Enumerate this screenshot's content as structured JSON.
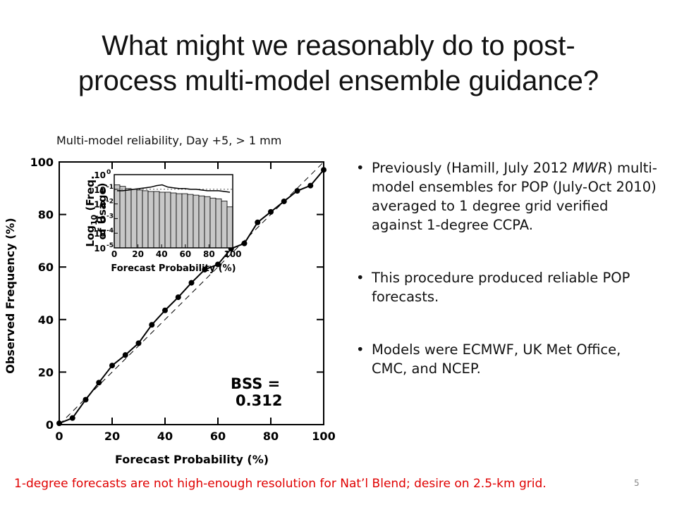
{
  "slide": {
    "title_line1": "What might we reasonably do to post-",
    "title_line2": "process multi-model ensemble guidance?",
    "chart_caption": "Multi-model reliability, Day +5, > 1 mm",
    "bullets": [
      {
        "pre": "Previously (Hamill, July 2012 ",
        "em": "MWR",
        "post": ") multi-model ensembles for POP (July-Oct 2010) averaged to 1 degree grid verified against 1-degree CCPA."
      },
      {
        "pre": "This procedure produced reliable POP forecasts.",
        "em": "",
        "post": ""
      },
      {
        "pre": "Models were ECMWF, UK Met Office, CMC, and NCEP.",
        "em": "",
        "post": ""
      }
    ],
    "footer_note": "1-degree forecasts are not high-enough resolution for Nat’l Blend; desire on 2.5-km grid.",
    "page_number": "5"
  },
  "chart_data": [
    {
      "type": "line",
      "xlabel": "Forecast Probability (%)",
      "ylabel": "Observed Frequency (%)",
      "xlim": [
        0,
        100
      ],
      "ylim": [
        0,
        100
      ],
      "xticks": [
        "0",
        "20",
        "40",
        "60",
        "80",
        "100"
      ],
      "yticks": [
        "0",
        "20",
        "40",
        "60",
        "80",
        "100"
      ],
      "annotation_line1": "BSS =",
      "annotation_line2": "0.312",
      "x": [
        0,
        5,
        10,
        15,
        20,
        25,
        30,
        35,
        40,
        45,
        50,
        55,
        60,
        65,
        70,
        75,
        80,
        85,
        90,
        95,
        100
      ],
      "y": [
        0.5,
        2.5,
        9.5,
        16,
        22.5,
        26.5,
        31,
        38,
        43.5,
        48.5,
        54,
        59,
        61,
        67,
        69,
        77,
        81,
        85,
        89,
        91,
        97
      ]
    },
    {
      "type": "bar",
      "xlabel": "Forecast Probability (%)",
      "ylabel_line1": "Log",
      "ylabel_sub": "10",
      "ylabel_rest": " (Freq.",
      "ylabel_line2": "of Usage)",
      "xticks": [
        "0",
        "20",
        "40",
        "60",
        "80",
        "100"
      ],
      "yticks": [
        "10",
        "10",
        "10",
        "10",
        "10",
        "10"
      ],
      "ytick_exponents": [
        "0",
        "-1",
        "-2",
        "-3",
        "-4",
        "-5"
      ],
      "ylim": [
        -5,
        0
      ],
      "log_scale": true,
      "x": [
        0,
        5,
        10,
        15,
        20,
        25,
        30,
        35,
        40,
        45,
        50,
        55,
        60,
        65,
        70,
        75,
        80,
        85,
        90,
        95,
        100
      ],
      "log_freq": [
        -0.7,
        -0.8,
        -0.95,
        -1.0,
        -1.05,
        -1.1,
        -1.15,
        -1.15,
        -1.2,
        -1.2,
        -1.25,
        -1.3,
        -1.3,
        -1.35,
        -1.4,
        -1.45,
        -1.5,
        -1.6,
        -1.65,
        -1.8,
        -2.2
      ],
      "series_line": [
        -1.1,
        -1.1,
        -1.05,
        -1.0,
        -0.95,
        -0.9,
        -0.85,
        -0.75,
        -0.7,
        -0.85,
        -0.9,
        -0.95,
        -0.95,
        -1.0,
        -1.0,
        -1.05,
        -1.1,
        -1.1,
        -1.1,
        -1.15,
        -1.2
      ]
    }
  ]
}
